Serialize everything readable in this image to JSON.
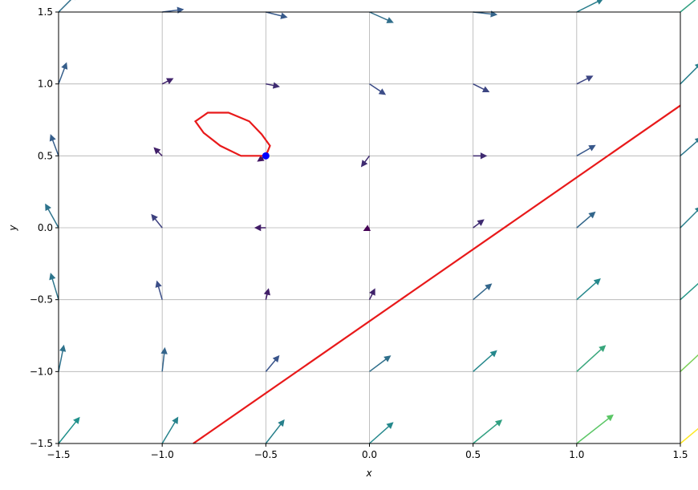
{
  "chart_data": {
    "type": "quiver",
    "xlabel": "x",
    "ylabel": "y",
    "xlim": [
      -1.5,
      1.5
    ],
    "ylim": [
      -1.5,
      1.5
    ],
    "xticks": [
      {
        "value": -1.5,
        "label": "−1.5"
      },
      {
        "value": -1.0,
        "label": "−1.0"
      },
      {
        "value": -0.5,
        "label": "−0.5"
      },
      {
        "value": 0,
        "label": "0.0"
      },
      0.5,
      {
        "value": 1.0,
        "label": "1.0"
      },
      1.5
    ],
    "yticks": [
      {
        "value": -1.5,
        "label": "−1.5"
      },
      {
        "value": -1.0,
        "label": "−1.0"
      },
      {
        "value": -0.5,
        "label": "−0.5"
      },
      {
        "value": 0,
        "label": "0.0"
      },
      0.5,
      {
        "value": 1.0,
        "label": "1.0"
      },
      1.5
    ],
    "grid": true,
    "colormap": "viridis",
    "quiver_x": [
      -1.5,
      -1.0,
      -0.5,
      0,
      0.5,
      1.0,
      1.5
    ],
    "quiver_y": [
      -1.5,
      -1.0,
      -0.5,
      0,
      0.5,
      1.0,
      1.5
    ],
    "u": [
      [
        0.8,
        0.6,
        0.7,
        0.9,
        1.1,
        1.4,
        1.8
      ],
      [
        0.2,
        0.1,
        0.5,
        0.8,
        0.9,
        1.1,
        1.4
      ],
      [
        -0.3,
        -0.2,
        0.1,
        0.2,
        0.7,
        0.9,
        1.0
      ],
      [
        -0.5,
        -0.4,
        -0.4,
        -0.2,
        0.4,
        0.7,
        0.8
      ],
      [
        -0.3,
        -0.3,
        -0.3,
        -0.3,
        0.5,
        0.7,
        0.8
      ],
      [
        0.3,
        0.4,
        0.5,
        0.6,
        0.6,
        0.6,
        0.8
      ],
      [
        0.7,
        0.8,
        0.8,
        0.9,
        0.9,
        1.0,
        1.1
      ]
    ],
    "v": [
      [
        1.0,
        1.0,
        0.9,
        0.8,
        0.9,
        1.1,
        1.5
      ],
      [
        1.0,
        0.9,
        0.6,
        0.6,
        0.8,
        1.0,
        1.3
      ],
      [
        1.0,
        0.7,
        0.4,
        0.4,
        0.6,
        0.8,
        0.9
      ],
      [
        0.9,
        0.5,
        0.0,
        -0.1,
        0.3,
        0.6,
        0.8
      ],
      [
        0.8,
        0.3,
        -0.2,
        -0.4,
        0.0,
        0.4,
        0.7
      ],
      [
        0.8,
        0.2,
        -0.1,
        -0.4,
        -0.3,
        0.3,
        0.8
      ],
      [
        0.7,
        0.1,
        -0.2,
        -0.4,
        -0.1,
        0.5,
        0.9
      ]
    ],
    "lines": [
      {
        "color": "#e8191a",
        "x": [
          -0.5,
          -0.48,
          -0.52,
          -0.58,
          -0.68,
          -0.78,
          -0.84,
          -0.8,
          -0.72,
          -0.62,
          -0.5
        ],
        "y": [
          0.5,
          0.57,
          0.65,
          0.74,
          0.8,
          0.8,
          0.74,
          0.66,
          0.57,
          0.5,
          0.5
        ]
      },
      {
        "color": "#e8191a",
        "x": [
          -0.85,
          1.5
        ],
        "y": [
          -1.5,
          0.85
        ]
      }
    ],
    "point": {
      "x": -0.5,
      "y": 0.5,
      "color": "#0000ff"
    }
  }
}
